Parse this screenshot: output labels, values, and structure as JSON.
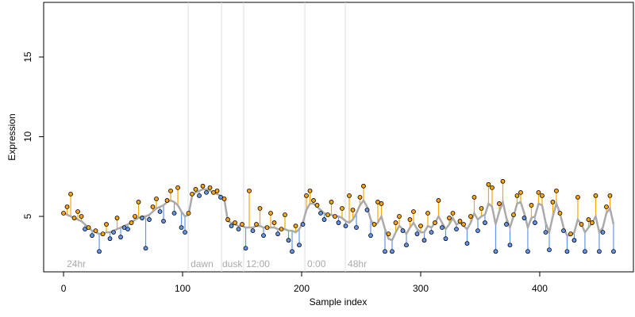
{
  "chart_data": {
    "type": "scatter",
    "x_label": "Sample index",
    "y_label": "Expression",
    "xlim": [
      -16.7,
      478.7
    ],
    "ylim": [
      1.52,
      18.43
    ],
    "xticks": [
      0,
      100,
      200,
      300,
      400
    ],
    "yticks": [
      5,
      10,
      15
    ],
    "above_color": "#ffa500",
    "below_color": "#6495ed",
    "fit_color": "#aaaaaa",
    "vline_color": "#dddddd",
    "vlines": [
      104.7,
      132.7,
      151.3,
      202.7,
      236.7
    ],
    "annotations": [
      {
        "x": 2.7,
        "label": "24hr"
      },
      {
        "x": 106.7,
        "label": "dawn"
      },
      {
        "x": 133.3,
        "label": "dusk"
      },
      {
        "x": 153.3,
        "label": "12:00"
      },
      {
        "x": 204.7,
        "label": "0:00"
      },
      {
        "x": 238.7,
        "label": "48hr"
      }
    ],
    "x": [
      0,
      3,
      6,
      9,
      12,
      15,
      18,
      21,
      24,
      27,
      30,
      33,
      36,
      39,
      42,
      45,
      48,
      51,
      54,
      57,
      60,
      63,
      66,
      69,
      72,
      75,
      78,
      81,
      84,
      87,
      90,
      93,
      96,
      99,
      102,
      105,
      108,
      111,
      114,
      117,
      120,
      123,
      126,
      129,
      132,
      135,
      138,
      141,
      144,
      147,
      150,
      153,
      156,
      159,
      162,
      165,
      168,
      171,
      174,
      177,
      180,
      183,
      186,
      189,
      192,
      195,
      198,
      201,
      204,
      207,
      210,
      213,
      216,
      219,
      222,
      225,
      228,
      231,
      234,
      237,
      240,
      243,
      246,
      249,
      252,
      255,
      258,
      261,
      264,
      267,
      270,
      273,
      276,
      279,
      282,
      285,
      288,
      291,
      294,
      297,
      300,
      303,
      306,
      309,
      312,
      315,
      318,
      321,
      324,
      327,
      330,
      333,
      336,
      339,
      342,
      345,
      348,
      351,
      354,
      357,
      360,
      363,
      366,
      369,
      372,
      375,
      378,
      381,
      384,
      387,
      390,
      393,
      396,
      399,
      402,
      405,
      408,
      411,
      414,
      417,
      420,
      423,
      426,
      429,
      432,
      435,
      438,
      441,
      444,
      447,
      450,
      453,
      456,
      459,
      462
    ],
    "values": [
      5.2,
      5.6,
      6.4,
      4.9,
      5.3,
      5.0,
      4.2,
      4.3,
      3.8,
      4.1,
      2.8,
      3.9,
      4.5,
      3.6,
      4.0,
      4.9,
      3.7,
      4.3,
      4.2,
      4.6,
      5.0,
      5.9,
      4.9,
      3.0,
      4.8,
      5.6,
      6.1,
      5.3,
      4.7,
      6.0,
      6.6,
      5.2,
      6.8,
      4.3,
      4.0,
      5.2,
      6.4,
      6.7,
      6.3,
      6.9,
      6.5,
      6.8,
      6.5,
      6.6,
      6.2,
      6.1,
      4.8,
      4.4,
      4.6,
      4.2,
      4.5,
      3.0,
      6.6,
      4.1,
      4.5,
      5.5,
      3.8,
      4.3,
      5.2,
      4.6,
      3.9,
      4.2,
      5.1,
      3.5,
      2.8,
      4.4,
      3.2,
      4.5,
      6.3,
      6.6,
      6.0,
      5.7,
      5.2,
      4.8,
      5.1,
      5.9,
      5.0,
      4.6,
      5.5,
      4.4,
      6.3,
      5.4,
      4.3,
      6.2,
      6.9,
      5.4,
      3.8,
      4.5,
      5.9,
      5.8,
      2.8,
      3.9,
      2.8,
      4.6,
      5.0,
      4.1,
      3.2,
      4.8,
      5.3,
      3.9,
      4.4,
      3.5,
      5.2,
      4.0,
      4.6,
      6.0,
      4.3,
      3.6,
      4.9,
      5.2,
      4.2,
      4.7,
      4.5,
      3.3,
      5.0,
      6.2,
      4.1,
      5.5,
      4.6,
      7.0,
      6.8,
      2.8,
      5.8,
      7.2,
      4.5,
      3.2,
      5.1,
      6.3,
      6.5,
      4.9,
      2.8,
      5.7,
      4.6,
      6.5,
      6.3,
      4.0,
      2.9,
      5.9,
      6.6,
      5.2,
      4.1,
      2.8,
      3.9,
      3.5,
      6.2,
      4.5,
      2.8,
      4.8,
      4.6,
      6.3,
      2.8,
      4.0,
      5.6,
      6.3,
      2.8
    ],
    "fit": [
      5.2,
      5.1,
      5.0,
      4.9,
      4.8,
      4.7,
      4.5,
      4.3,
      4.1,
      4.0,
      3.9,
      3.9,
      4.0,
      4.0,
      4.1,
      4.2,
      4.3,
      4.4,
      4.5,
      4.6,
      4.8,
      4.9,
      5.0,
      5.0,
      5.1,
      5.3,
      5.5,
      5.6,
      5.7,
      5.9,
      6.0,
      5.9,
      5.7,
      5.3,
      5.0,
      5.1,
      6.3,
      6.5,
      6.6,
      6.7,
      6.7,
      6.6,
      6.5,
      6.4,
      6.3,
      6.1,
      4.7,
      4.6,
      4.5,
      4.4,
      4.4,
      4.3,
      4.3,
      4.3,
      4.4,
      4.4,
      4.3,
      4.3,
      4.3,
      4.3,
      4.2,
      4.2,
      4.2,
      4.1,
      4.1,
      4.0,
      4.2,
      4.6,
      5.4,
      5.8,
      5.8,
      5.6,
      5.4,
      5.2,
      5.1,
      5.1,
      5.0,
      5.0,
      4.9,
      4.7,
      4.6,
      4.8,
      5.2,
      5.7,
      6.0,
      5.6,
      4.8,
      4.4,
      4.6,
      5.0,
      4.2,
      3.6,
      3.5,
      4.0,
      4.4,
      4.2,
      3.9,
      4.3,
      4.6,
      4.2,
      4.0,
      4.0,
      4.4,
      4.3,
      4.6,
      5.0,
      4.6,
      4.2,
      4.5,
      4.9,
      4.5,
      4.6,
      4.4,
      4.2,
      4.6,
      5.2,
      4.8,
      5.0,
      5.1,
      5.8,
      5.6,
      4.5,
      5.3,
      5.9,
      4.9,
      4.3,
      5.0,
      5.8,
      5.9,
      5.2,
      4.3,
      4.9,
      5.0,
      5.8,
      5.7,
      4.6,
      4.0,
      5.0,
      5.8,
      5.2,
      4.3,
      3.8,
      3.8,
      4.0,
      4.8,
      4.5,
      4.0,
      4.3,
      4.6,
      5.0,
      4.0,
      4.3,
      5.2,
      5.5,
      4.5
    ]
  }
}
